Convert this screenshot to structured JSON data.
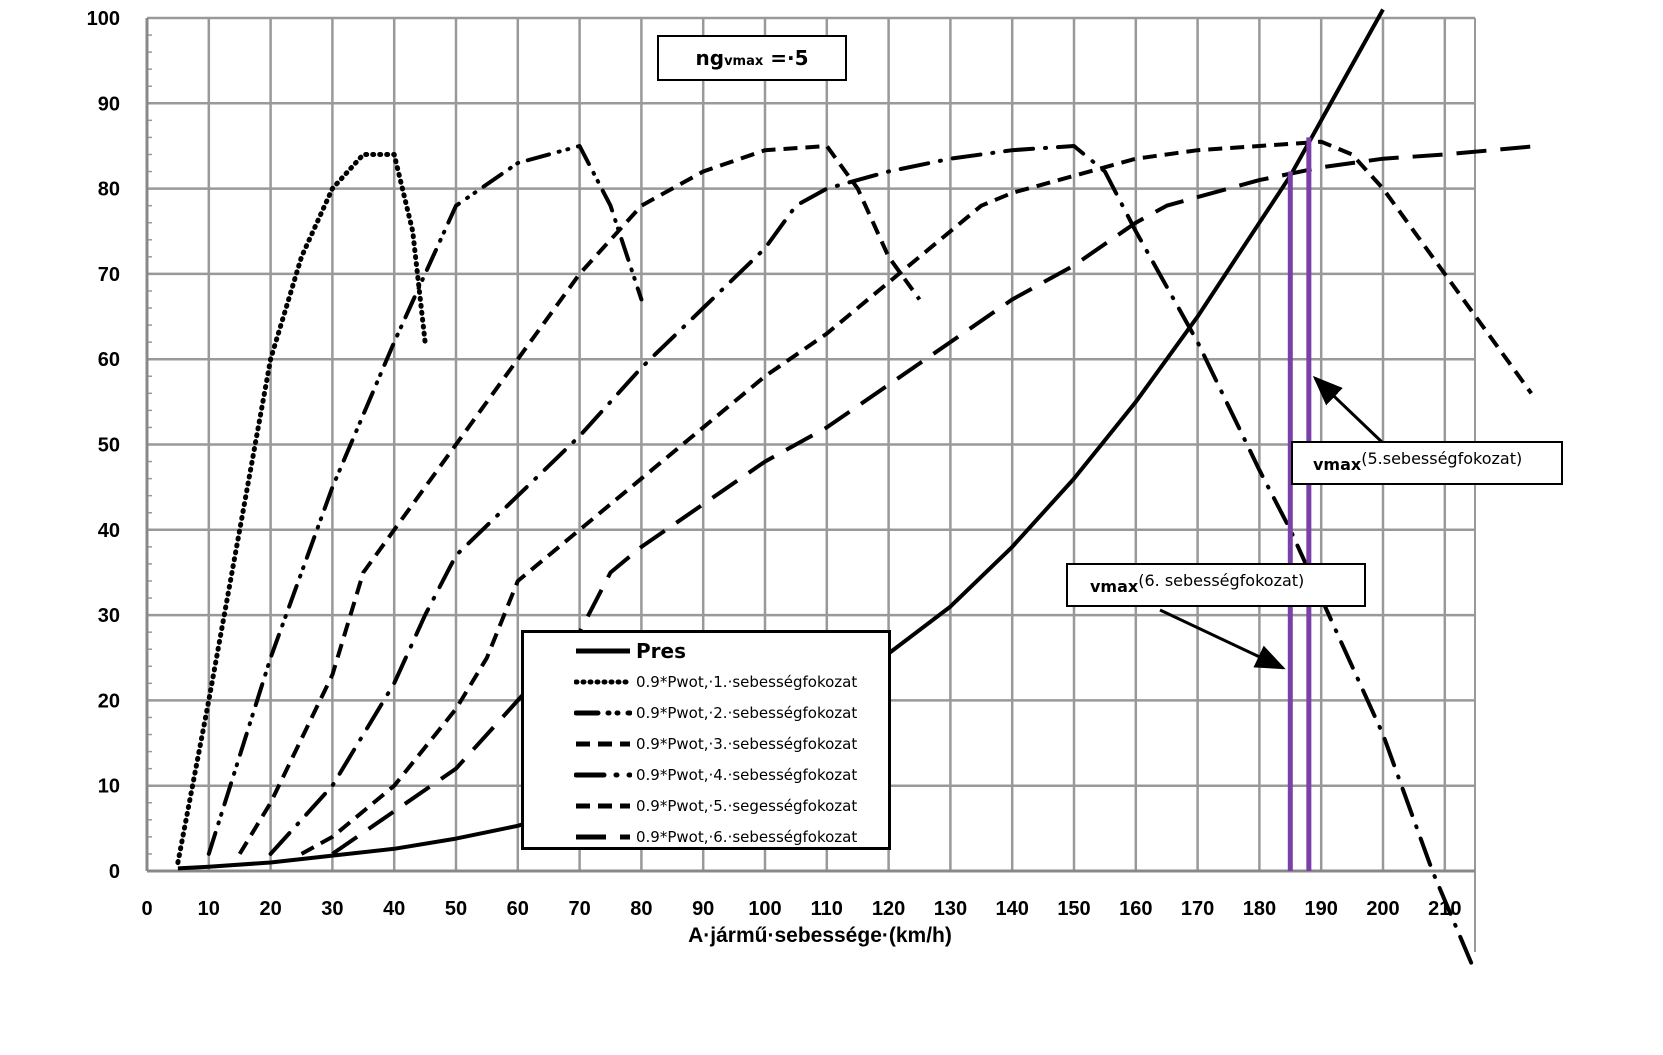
{
  "chart_data": {
    "type": "line",
    "title": "",
    "xlabel": "A·jármű·sebessége·(km/h)",
    "ylabel": "",
    "xlim": [
      0,
      215
    ],
    "ylim": [
      0,
      100
    ],
    "xticks": [
      0,
      10,
      20,
      30,
      40,
      50,
      60,
      70,
      80,
      90,
      100,
      110,
      120,
      130,
      140,
      150,
      160,
      170,
      180,
      190,
      200,
      210
    ],
    "yticks": [
      0,
      10,
      20,
      30,
      40,
      50,
      60,
      70,
      80,
      90,
      100
    ],
    "grid": true,
    "legend_position": "bottom-center",
    "series": [
      {
        "name": "Pres",
        "style": "solid",
        "x": [
          5,
          10,
          20,
          30,
          40,
          50,
          60,
          70,
          80,
          90,
          100,
          110,
          120,
          130,
          140,
          150,
          160,
          170,
          180,
          185,
          190,
          200
        ],
        "y": [
          0.3,
          0.5,
          1,
          1.8,
          2.6,
          3.8,
          5.3,
          7.5,
          10,
          13,
          16.5,
          20.5,
          25.5,
          31,
          38,
          46,
          55,
          65,
          76,
          81.5,
          88,
          101
        ]
      },
      {
        "name": "0.9*Pwot,·1.·sebességfokozat",
        "style": "dotted",
        "x": [
          5,
          10,
          15,
          20,
          25,
          30,
          35,
          40,
          43,
          45
        ],
        "y": [
          1,
          20,
          40,
          60,
          72,
          80,
          84,
          84,
          75,
          62
        ]
      },
      {
        "name": "0.9*Pwot,·2.·sebességfokozat",
        "style": "dash-dot-dot",
        "x": [
          10,
          20,
          30,
          40,
          50,
          60,
          70,
          75,
          80
        ],
        "y": [
          2,
          25,
          45,
          62,
          78,
          83,
          85,
          78,
          67
        ]
      },
      {
        "name": "0.9*Pwot,·3.·sebességfokozat",
        "style": "dashed",
        "x": [
          15,
          20,
          30,
          35,
          40,
          50,
          60,
          70,
          80,
          90,
          100,
          110,
          115,
          120,
          125
        ],
        "y": [
          2,
          8,
          23,
          35,
          40,
          50,
          60,
          70,
          78,
          82,
          84.5,
          85,
          80,
          72,
          67
        ]
      },
      {
        "name": "0.9*Pwot,·4.·sebességfokozat",
        "style": "dash-dot",
        "x": [
          20,
          30,
          40,
          45,
          50,
          60,
          70,
          80,
          90,
          100,
          105,
          110,
          120,
          130,
          140,
          150,
          155,
          160,
          170,
          180,
          185,
          190,
          200,
          208,
          215
        ],
        "y": [
          2,
          10,
          22,
          30,
          37,
          44,
          51,
          59,
          66,
          73,
          78,
          80,
          82,
          83.5,
          84.5,
          85,
          82,
          75,
          62,
          47,
          40,
          32,
          16,
          0,
          -12
        ]
      },
      {
        "name": "0.9*Pwot,·5.·segességfokozat",
        "style": "dashed",
        "x": [
          25,
          30,
          40,
          50,
          55,
          60,
          70,
          80,
          90,
          100,
          110,
          120,
          130,
          135,
          140,
          150,
          160,
          170,
          180,
          190,
          195,
          200,
          210,
          220,
          224
        ],
        "y": [
          2,
          4,
          10,
          19,
          25,
          34,
          40,
          46,
          52,
          58,
          63,
          69,
          75,
          78,
          79.5,
          81.5,
          83.5,
          84.5,
          85,
          85.5,
          84,
          80,
          70,
          60,
          56
        ]
      },
      {
        "name": "0.9*Pwot,·6.·sebességfokozat",
        "style": "long-dash",
        "x": [
          30,
          40,
          50,
          60,
          70,
          75,
          80,
          90,
          100,
          110,
          120,
          130,
          140,
          150,
          160,
          165,
          170,
          180,
          190,
          200,
          210,
          225
        ],
        "y": [
          2,
          7,
          12,
          20,
          28,
          35,
          38,
          43,
          48,
          52,
          57,
          62,
          67,
          71,
          76,
          78,
          79,
          81,
          82.5,
          83.5,
          84,
          85
        ]
      }
    ],
    "vertical_markers": [
      {
        "x": 185,
        "y_top": 82,
        "color": "#7B3FA8"
      },
      {
        "x": 188,
        "y_top": 86,
        "color": "#7B3FA8"
      }
    ],
    "annotations": {
      "gear_box": {
        "main": "ng",
        "sub": "vmax",
        "rest": " =·5"
      },
      "vmax5": {
        "main": "vmax",
        "rest": "(5.sebességfokozat)"
      },
      "vmax6": {
        "main": "vmax",
        "rest": "(6. sebességfokozat)"
      }
    }
  }
}
